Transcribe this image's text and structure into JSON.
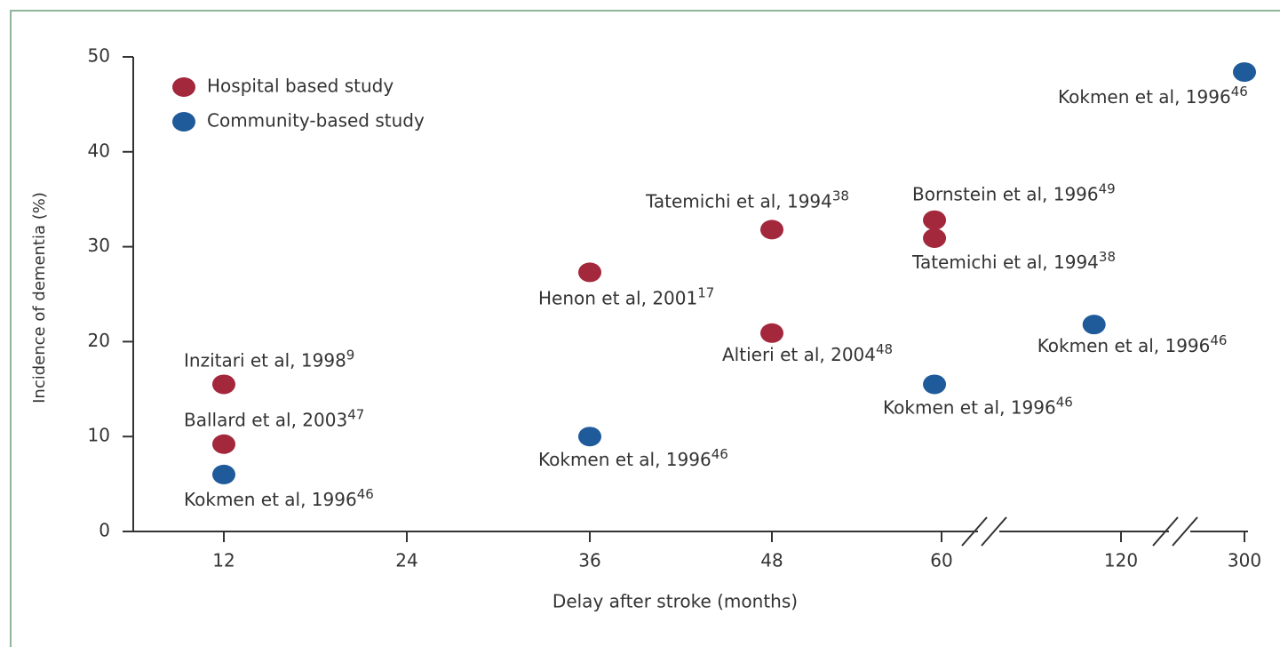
{
  "chart_data": {
    "type": "scatter",
    "xlabel": "Delay after stroke (months)",
    "ylabel": "Incidence of dementia (%)",
    "xlim": [
      6,
      300
    ],
    "xticks": [
      12,
      24,
      36,
      48,
      60,
      120,
      300
    ],
    "ylim": [
      0,
      50
    ],
    "yticks": [
      0,
      10,
      20,
      30,
      40,
      50
    ],
    "grid": false,
    "legend": "upper left",
    "series": [
      {
        "name": "Hospital based study",
        "color": "#a3283c",
        "x": [
          12,
          12,
          36,
          48,
          48,
          59.5,
          59.5
        ],
        "values": [
          15.5,
          9.2,
          27.3,
          31.8,
          20.9,
          32.8,
          30.9
        ],
        "labels": [
          "Inzitari et al, 1998",
          "Ballard et al, 2003",
          "Henon et al, 2001",
          "Tatemichi et al, 1994",
          "Altieri et al, 2004",
          "Bornstein et al, 1996",
          "Tatemichi et al, 1994"
        ],
        "refs": [
          "9",
          "47",
          "17",
          "38",
          "48",
          "49",
          "38"
        ]
      },
      {
        "name": "Community-based study",
        "color": "#1f5a9a",
        "x": [
          12,
          36,
          59.5,
          111,
          300
        ],
        "values": [
          6,
          10,
          15.5,
          21.8,
          48.4
        ],
        "labels": [
          "Kokmen et al, 1996",
          "Kokmen et al, 1996",
          "Kokmen et al, 1996",
          "Kokmen et al, 1996",
          "Kokmen et al, 1996"
        ],
        "refs": [
          "46",
          "46",
          "46",
          "46",
          "46"
        ]
      }
    ]
  }
}
